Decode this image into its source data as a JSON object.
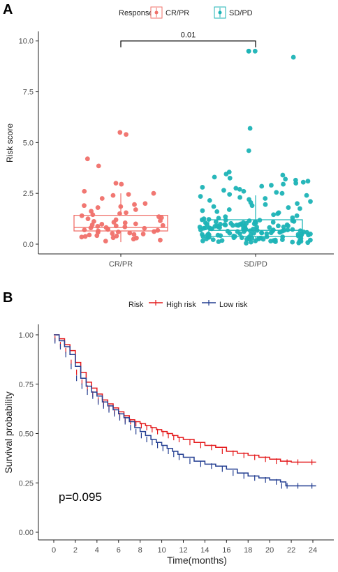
{
  "colors": {
    "crpr": "#F0706A",
    "sdpd": "#1CB3B6",
    "high_risk": "#E41A1C",
    "low_risk": "#233E91"
  },
  "panel_a": {
    "letter": "A",
    "legend_title": "Response",
    "legend_items": [
      "CR/PR",
      "SD/PD"
    ],
    "comparison_label": "0.01"
  },
  "panel_b": {
    "letter": "B",
    "legend_title": "Risk",
    "legend_items": [
      "High risk",
      "Low risk"
    ],
    "pvalue_label": "p=0.095"
  },
  "chart_data": [
    {
      "type": "box",
      "title": "",
      "xlabel": "",
      "ylabel": "Risk score",
      "ylim": [
        0,
        10.3
      ],
      "yticks": [
        "0.0",
        "2.5",
        "5.0",
        "7.5",
        "10.0"
      ],
      "grid": false,
      "legend_position": "top",
      "categories": [
        "CR/PR",
        "SD/PD"
      ],
      "series": [
        {
          "name": "CR/PR",
          "box": {
            "q1": 0.65,
            "median": 0.82,
            "q3": 1.42,
            "whisker_low": 0.1,
            "whisker_high": 2.5
          },
          "points": [
            5.5,
            5.4,
            4.2,
            3.85,
            3.0,
            2.95,
            2.6,
            2.5,
            2.45,
            2.4,
            2.25,
            2.0,
            1.95,
            1.9,
            1.85,
            1.8,
            1.7,
            1.62,
            1.55,
            1.5,
            1.45,
            1.4,
            1.35,
            1.3,
            1.25,
            1.2,
            1.15,
            1.12,
            1.08,
            1.05,
            1.0,
            0.98,
            0.95,
            0.92,
            0.9,
            0.88,
            0.85,
            0.82,
            0.8,
            0.78,
            0.75,
            0.72,
            0.7,
            0.68,
            0.65,
            0.62,
            0.6,
            0.58,
            0.55,
            0.52,
            0.5,
            0.48,
            0.45,
            0.42,
            0.4,
            0.38,
            0.35,
            0.32,
            0.3,
            0.25,
            0.2,
            0.15
          ]
        },
        {
          "name": "SD/PD",
          "box": {
            "q1": 0.38,
            "median": 0.68,
            "q3": 1.2,
            "whisker_low": 0.05,
            "whisker_high": 2.4
          },
          "points": [
            9.5,
            9.5,
            9.5,
            9.2,
            5.7,
            4.6,
            3.55,
            3.45,
            3.4,
            3.3,
            3.25,
            3.2,
            3.15,
            3.1,
            3.05,
            3.0,
            2.95,
            2.9,
            2.85,
            2.8,
            2.75,
            2.7,
            2.65,
            2.6,
            2.55,
            2.5,
            2.45,
            2.4,
            2.35,
            2.3,
            2.25,
            2.2,
            2.15,
            2.1,
            2.05,
            2.0,
            1.95,
            1.9,
            1.85,
            1.8,
            1.75,
            1.7,
            1.65,
            1.6,
            1.55,
            1.5,
            1.45,
            1.4,
            1.35,
            1.3,
            1.28,
            1.25,
            1.22,
            1.2,
            1.18,
            1.15,
            1.12,
            1.1,
            1.08,
            1.05,
            1.02,
            1.0,
            0.98,
            0.96,
            0.94,
            0.92,
            0.9,
            0.88,
            0.86,
            0.84,
            0.82,
            0.8,
            0.78,
            0.76,
            0.74,
            0.72,
            0.7,
            0.68,
            0.66,
            0.64,
            0.62,
            0.6,
            0.58,
            0.56,
            0.54,
            0.52,
            0.5,
            0.48,
            0.46,
            0.44,
            0.42,
            0.4,
            0.38,
            0.36,
            0.34,
            0.32,
            0.3,
            0.28,
            0.26,
            0.24,
            0.22,
            0.2,
            0.18,
            0.16,
            0.14,
            0.12,
            0.1,
            0.08,
            0.06,
            0.05,
            1.1,
            0.9,
            0.7,
            0.5,
            0.3,
            0.2,
            0.15,
            0.1,
            0.25,
            0.35,
            0.45,
            0.55,
            0.65,
            0.75,
            0.85,
            0.95,
            1.05,
            1.15,
            0.4,
            0.6,
            0.8,
            1.0,
            0.3,
            0.5,
            0.7,
            0.9,
            0.2,
            0.12,
            0.18,
            0.28,
            0.38,
            0.48,
            0.58,
            0.68,
            0.78,
            0.88,
            0.98,
            1.08,
            1.18,
            0.22,
            0.32,
            0.42,
            0.52,
            0.62,
            0.72,
            0.82,
            0.92,
            1.02,
            0.14,
            0.24,
            0.34,
            0.44,
            0.54,
            0.64,
            0.74,
            0.84,
            0.94,
            0.16,
            0.26,
            0.36,
            0.46,
            0.56,
            0.66,
            0.76,
            0.86,
            0.96,
            1.06
          ]
        }
      ],
      "comparison": {
        "groups": [
          "CR/PR",
          "SD/PD"
        ],
        "label": "0.01",
        "y": 10.0
      }
    },
    {
      "type": "line",
      "title": "",
      "xlabel": "Time(months)",
      "ylabel": "Survival probability",
      "xlim": [
        0,
        24.6
      ],
      "ylim": [
        0,
        1.0
      ],
      "xticks": [
        0,
        2,
        4,
        6,
        8,
        10,
        12,
        14,
        16,
        18,
        20,
        22,
        24
      ],
      "yticks": [
        "0.00",
        "0.25",
        "0.50",
        "0.75",
        "1.00"
      ],
      "grid": false,
      "legend_position": "top",
      "step": true,
      "series": [
        {
          "name": "High risk",
          "x": [
            0.0,
            0.5,
            1.0,
            1.5,
            2.0,
            2.5,
            3.0,
            3.5,
            4.0,
            4.5,
            5.0,
            5.5,
            6.0,
            6.5,
            7.0,
            7.5,
            8.0,
            8.5,
            9.0,
            9.5,
            10.0,
            10.5,
            11.0,
            11.5,
            12.0,
            13.0,
            14.0,
            15.0,
            16.0,
            17.0,
            18.0,
            19.0,
            20.0,
            21.0,
            22.0,
            23.0,
            24.3
          ],
          "y": [
            1.0,
            0.98,
            0.95,
            0.92,
            0.86,
            0.81,
            0.76,
            0.73,
            0.7,
            0.67,
            0.65,
            0.63,
            0.61,
            0.59,
            0.57,
            0.56,
            0.55,
            0.54,
            0.53,
            0.52,
            0.51,
            0.5,
            0.49,
            0.48,
            0.47,
            0.455,
            0.44,
            0.43,
            0.41,
            0.4,
            0.39,
            0.38,
            0.37,
            0.36,
            0.355,
            0.355,
            0.355
          ]
        },
        {
          "name": "Low risk",
          "x": [
            0.0,
            0.5,
            1.0,
            1.5,
            2.0,
            2.5,
            3.0,
            3.5,
            4.0,
            4.5,
            5.0,
            5.5,
            6.0,
            6.5,
            7.0,
            7.5,
            8.0,
            8.5,
            9.0,
            9.5,
            10.0,
            10.5,
            11.0,
            11.5,
            12.0,
            13.0,
            14.0,
            15.0,
            16.0,
            17.0,
            18.0,
            19.0,
            20.0,
            21.0,
            21.5,
            22.0,
            23.0,
            24.3
          ],
          "y": [
            1.0,
            0.97,
            0.94,
            0.9,
            0.84,
            0.78,
            0.74,
            0.71,
            0.69,
            0.66,
            0.64,
            0.62,
            0.6,
            0.58,
            0.56,
            0.53,
            0.51,
            0.49,
            0.47,
            0.455,
            0.44,
            0.425,
            0.41,
            0.395,
            0.38,
            0.36,
            0.345,
            0.335,
            0.32,
            0.3,
            0.285,
            0.275,
            0.265,
            0.255,
            0.235,
            0.235,
            0.235,
            0.235
          ]
        }
      ]
    }
  ]
}
